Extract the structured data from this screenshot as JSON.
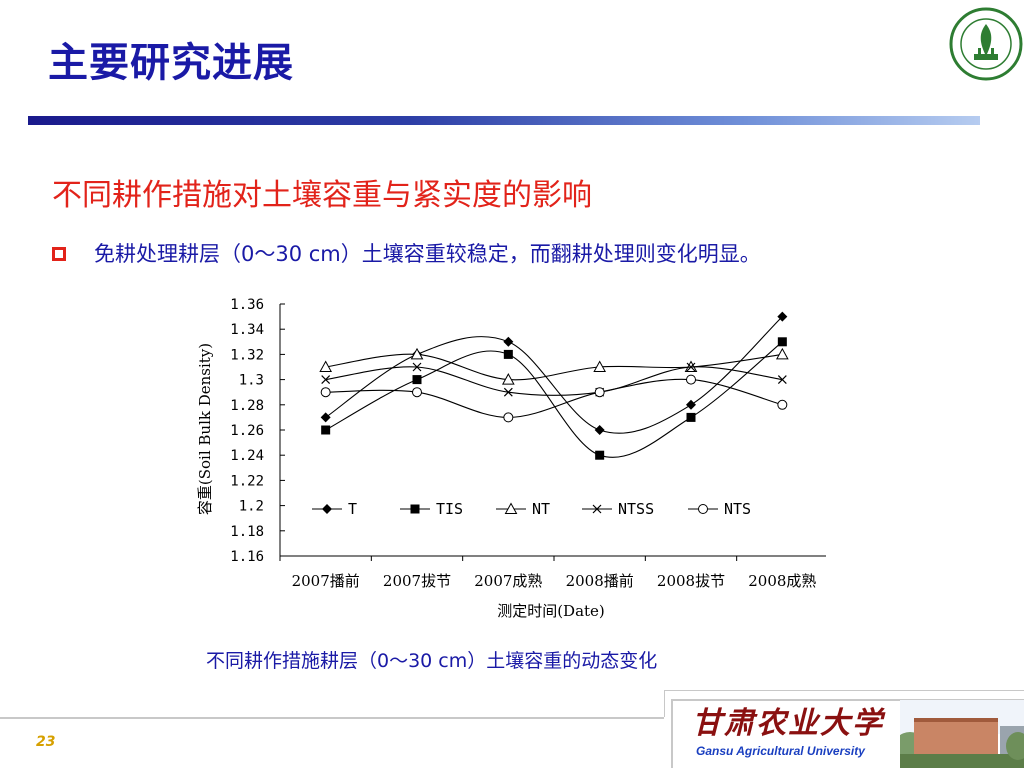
{
  "header": {
    "title": "主要研究进展"
  },
  "section": {
    "subtitle": "不同耕作措施对土壤容重与紧实度的影响",
    "bullet": "免耕处理耕层（0～30 cm）土壤容重较稳定，而翻耕处理则变化明显。"
  },
  "figure": {
    "caption": "不同耕作措施耕层（0～30 cm）土壤容重的动态变化"
  },
  "footer": {
    "page_number": "23",
    "university_cn": "甘肃农业大学",
    "university_en": "Gansu Agricultural University"
  },
  "theme": {
    "title_color": "#1a1aa6",
    "accent_red": "#e2231a",
    "page_number_color": "#d6a000"
  },
  "chart_data": {
    "type": "line",
    "xlabel": "测定时间(Date)",
    "ylabel": "容重(Soil Bulk Density)",
    "ylim": [
      1.16,
      1.36
    ],
    "y_ticks": [
      "1.36",
      "1.34",
      "1.32",
      "1.3",
      "1.28",
      "1.26",
      "1.24",
      "1.22",
      "1.2",
      "1.18",
      "1.16"
    ],
    "categories": [
      "2007播前",
      "2007拔节",
      "2007成熟",
      "2008播前",
      "2008拔节",
      "2008成熟"
    ],
    "legend_position": "inside-bottom",
    "grid": false,
    "series": [
      {
        "name": "T",
        "marker": "diamond-filled",
        "values": [
          1.27,
          1.32,
          1.33,
          1.26,
          1.28,
          1.35
        ]
      },
      {
        "name": "TIS",
        "marker": "square-filled",
        "values": [
          1.26,
          1.3,
          1.32,
          1.24,
          1.27,
          1.33
        ]
      },
      {
        "name": "NT",
        "marker": "triangle-open",
        "values": [
          1.31,
          1.32,
          1.3,
          1.31,
          1.31,
          1.32
        ]
      },
      {
        "name": "NTSS",
        "marker": "cross",
        "values": [
          1.3,
          1.31,
          1.29,
          1.29,
          1.31,
          1.3
        ]
      },
      {
        "name": "NTS",
        "marker": "circle-open",
        "values": [
          1.29,
          1.29,
          1.27,
          1.29,
          1.3,
          1.28
        ]
      }
    ]
  }
}
